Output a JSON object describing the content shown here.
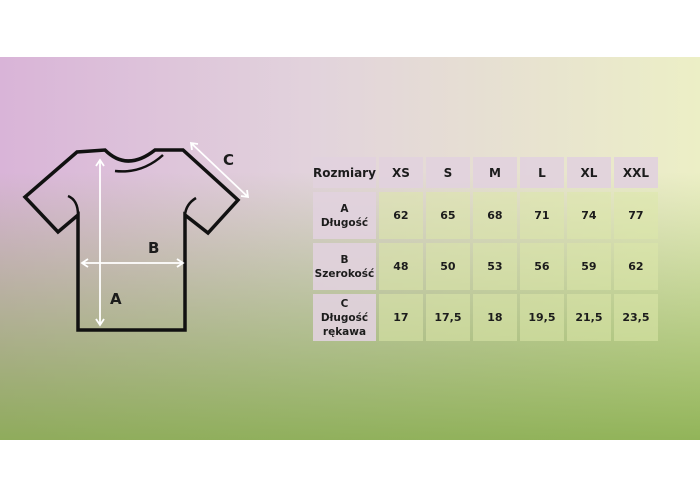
{
  "diagram": {
    "labels": {
      "a": "A",
      "b": "B",
      "c": "C"
    }
  },
  "table": {
    "header_label": "Rozmiary",
    "sizes": [
      "XS",
      "S",
      "M",
      "L",
      "XL",
      "XXL"
    ],
    "rows": [
      {
        "letter": "A",
        "name": "Długość",
        "name2": "",
        "values": [
          "62",
          "65",
          "68",
          "71",
          "74",
          "77"
        ]
      },
      {
        "letter": "B",
        "name": "Szerokość",
        "name2": "",
        "values": [
          "48",
          "50",
          "53",
          "56",
          "59",
          "62"
        ]
      },
      {
        "letter": "C",
        "name": "Długość",
        "name2": "rękawa",
        "values": [
          "17",
          "17,5",
          "18",
          "19,5",
          "21,5",
          "23,5"
        ]
      }
    ]
  }
}
